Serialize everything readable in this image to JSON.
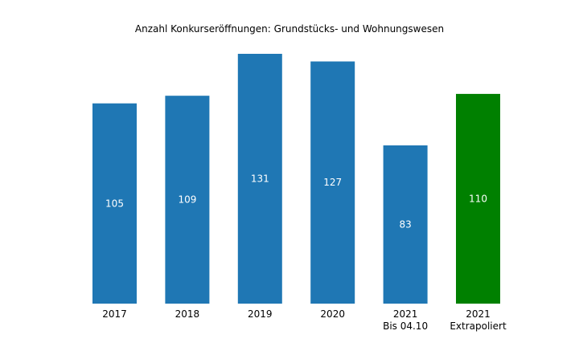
{
  "chart_data": {
    "type": "bar",
    "title": "Anzahl Konkurseröffnungen: Grundstücks- und Wohnungswesen",
    "xlabel": "",
    "ylabel": "",
    "categories": [
      [
        "2017"
      ],
      [
        "2018"
      ],
      [
        "2019"
      ],
      [
        "2020"
      ],
      [
        "2021",
        "Bis 04.10"
      ],
      [
        "2021",
        "Extrapoliert"
      ]
    ],
    "values": [
      105,
      109,
      131,
      127,
      83,
      110
    ],
    "data_labels": [
      "105",
      "109",
      "131",
      "127",
      "83",
      "110"
    ],
    "colors": [
      "#1f77b4",
      "#1f77b4",
      "#1f77b4",
      "#1f77b4",
      "#1f77b4",
      "#008000"
    ],
    "ylim": [
      0,
      131
    ],
    "grid": false,
    "legend": "none"
  }
}
